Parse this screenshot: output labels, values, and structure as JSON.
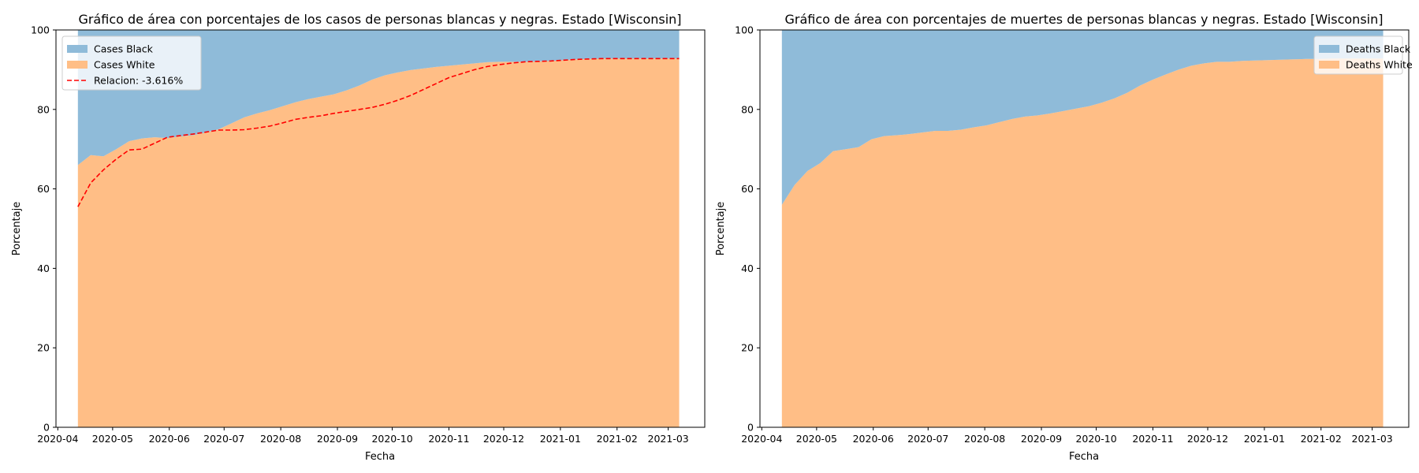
{
  "chart_data": [
    {
      "type": "area",
      "stacked": true,
      "title": "Gráfico de área con porcentajes de los casos de personas blancas y negras. Estado [Wisconsin]",
      "xlabel": "Fecha",
      "ylabel": "Porcentaje",
      "ylim": [
        0,
        100
      ],
      "xlim": [
        "2020-03-31",
        "2021-03-21"
      ],
      "yticks": [
        "0",
        "20",
        "40",
        "60",
        "80",
        "100"
      ],
      "xticks": [
        "2020-04",
        "2020-05",
        "2020-06",
        "2020-07",
        "2020-08",
        "2020-09",
        "2020-10",
        "2020-11",
        "2020-12",
        "2021-01",
        "2021-02",
        "2021-03"
      ],
      "legend_position": "top-left",
      "dates": [
        "2020-04-12",
        "2020-04-19",
        "2020-04-26",
        "2020-05-03",
        "2020-05-10",
        "2020-05-17",
        "2020-05-24",
        "2020-05-31",
        "2020-06-07",
        "2020-06-14",
        "2020-06-21",
        "2020-06-28",
        "2020-07-05",
        "2020-07-12",
        "2020-07-19",
        "2020-07-26",
        "2020-08-02",
        "2020-08-09",
        "2020-08-16",
        "2020-08-23",
        "2020-08-30",
        "2020-09-06",
        "2020-09-13",
        "2020-09-20",
        "2020-09-27",
        "2020-10-04",
        "2020-10-11",
        "2020-10-18",
        "2020-10-25",
        "2020-11-01",
        "2020-11-08",
        "2020-11-15",
        "2020-11-22",
        "2020-11-29",
        "2020-12-06",
        "2020-12-13",
        "2020-12-20",
        "2020-12-27",
        "2021-01-03",
        "2021-01-10",
        "2021-01-17",
        "2021-01-24",
        "2021-01-31",
        "2021-02-07",
        "2021-02-14",
        "2021-02-21",
        "2021-02-28",
        "2021-03-07"
      ],
      "series": [
        {
          "name": "Cases White",
          "color": "#ffbe86",
          "values": [
            66.0,
            68.5,
            68.2,
            70.0,
            72.0,
            72.7,
            73.0,
            72.8,
            73.2,
            73.5,
            74.2,
            75.0,
            76.5,
            78.0,
            79.0,
            79.8,
            80.8,
            81.8,
            82.6,
            83.2,
            83.8,
            84.8,
            86.0,
            87.5,
            88.6,
            89.3,
            89.9,
            90.3,
            90.7,
            91.0,
            91.3,
            91.6,
            91.9,
            92.0,
            92.0,
            92.0,
            92.1,
            92.2,
            92.4,
            92.6,
            92.7,
            92.8,
            92.8,
            92.8,
            92.8,
            92.8,
            92.8,
            92.8
          ]
        },
        {
          "name": "Cases Black",
          "color": "#8fbbd9",
          "values": [
            34.0,
            31.5,
            31.8,
            30.0,
            28.0,
            27.3,
            27.0,
            27.2,
            26.8,
            26.5,
            25.8,
            25.0,
            23.5,
            22.0,
            21.0,
            20.2,
            19.2,
            18.2,
            17.4,
            16.8,
            16.2,
            15.2,
            14.0,
            12.5,
            11.4,
            10.7,
            10.1,
            9.7,
            9.3,
            9.0,
            8.7,
            8.4,
            8.1,
            8.0,
            8.0,
            8.0,
            7.9,
            7.8,
            7.6,
            7.4,
            7.3,
            7.2,
            7.2,
            7.2,
            7.2,
            7.2,
            7.2,
            7.2
          ]
        }
      ],
      "line": {
        "name": "Relacion: -3.616%",
        "color": "#ff0000",
        "style": "dashed",
        "values": [
          55.5,
          61.5,
          64.8,
          67.5,
          69.8,
          70.0,
          71.5,
          73.0,
          73.4,
          73.8,
          74.3,
          74.8,
          74.8,
          74.9,
          75.3,
          75.8,
          76.6,
          77.5,
          78.0,
          78.4,
          79.0,
          79.5,
          80.0,
          80.5,
          81.3,
          82.3,
          83.5,
          85.0,
          86.5,
          88.0,
          89.0,
          90.0,
          90.8,
          91.3,
          91.7,
          92.0,
          92.1,
          92.2,
          92.4,
          92.6,
          92.7,
          92.8,
          92.8,
          92.8,
          92.8,
          92.8,
          92.8,
          92.8
        ]
      }
    },
    {
      "type": "area",
      "stacked": true,
      "title": "Gráfico de área con porcentajes de muertes de personas blancas y negras. Estado [Wisconsin]",
      "xlabel": "Fecha",
      "ylabel": "Porcentaje",
      "ylim": [
        0,
        100
      ],
      "xlim": [
        "2020-03-31",
        "2021-03-21"
      ],
      "yticks": [
        "0",
        "20",
        "40",
        "60",
        "80",
        "100"
      ],
      "xticks": [
        "2020-04",
        "2020-05",
        "2020-06",
        "2020-07",
        "2020-08",
        "2020-09",
        "2020-10",
        "2020-11",
        "2020-12",
        "2021-01",
        "2021-02",
        "2021-03"
      ],
      "legend_position": "top-right",
      "dates": [
        "2020-04-12",
        "2020-04-19",
        "2020-04-26",
        "2020-05-03",
        "2020-05-10",
        "2020-05-17",
        "2020-05-24",
        "2020-05-31",
        "2020-06-07",
        "2020-06-14",
        "2020-06-21",
        "2020-06-28",
        "2020-07-05",
        "2020-07-12",
        "2020-07-19",
        "2020-07-26",
        "2020-08-02",
        "2020-08-09",
        "2020-08-16",
        "2020-08-23",
        "2020-08-30",
        "2020-09-06",
        "2020-09-13",
        "2020-09-20",
        "2020-09-27",
        "2020-10-04",
        "2020-10-11",
        "2020-10-18",
        "2020-10-25",
        "2020-11-01",
        "2020-11-08",
        "2020-11-15",
        "2020-11-22",
        "2020-11-29",
        "2020-12-06",
        "2020-12-13",
        "2020-12-20",
        "2020-12-27",
        "2021-01-03",
        "2021-01-10",
        "2021-01-17",
        "2021-01-24",
        "2021-01-31",
        "2021-02-07",
        "2021-02-14",
        "2021-02-21",
        "2021-02-28",
        "2021-03-07"
      ],
      "series": [
        {
          "name": "Deaths White",
          "color": "#ffbe86",
          "values": [
            56.0,
            61.0,
            64.5,
            66.5,
            69.5,
            70.0,
            70.5,
            72.5,
            73.3,
            73.5,
            73.8,
            74.2,
            74.6,
            74.6,
            74.9,
            75.5,
            76.0,
            76.8,
            77.6,
            78.2,
            78.5,
            79.0,
            79.6,
            80.2,
            80.8,
            81.7,
            82.8,
            84.2,
            86.0,
            87.5,
            88.8,
            90.0,
            91.0,
            91.6,
            92.0,
            92.0,
            92.2,
            92.3,
            92.4,
            92.5,
            92.6,
            92.7,
            92.7,
            92.8,
            92.8,
            92.8,
            92.8,
            92.8
          ]
        },
        {
          "name": "Deaths Black",
          "color": "#8fbbd9",
          "values": [
            44.0,
            39.0,
            35.5,
            33.5,
            30.5,
            30.0,
            29.5,
            27.5,
            26.7,
            26.5,
            26.2,
            25.8,
            25.4,
            25.4,
            25.1,
            24.5,
            24.0,
            23.2,
            22.4,
            21.8,
            21.5,
            21.0,
            20.4,
            19.8,
            19.2,
            18.3,
            17.2,
            15.8,
            14.0,
            12.5,
            11.2,
            10.0,
            9.0,
            8.4,
            8.0,
            8.0,
            7.8,
            7.7,
            7.6,
            7.5,
            7.4,
            7.3,
            7.3,
            7.2,
            7.2,
            7.2,
            7.2,
            7.2
          ]
        }
      ]
    }
  ]
}
